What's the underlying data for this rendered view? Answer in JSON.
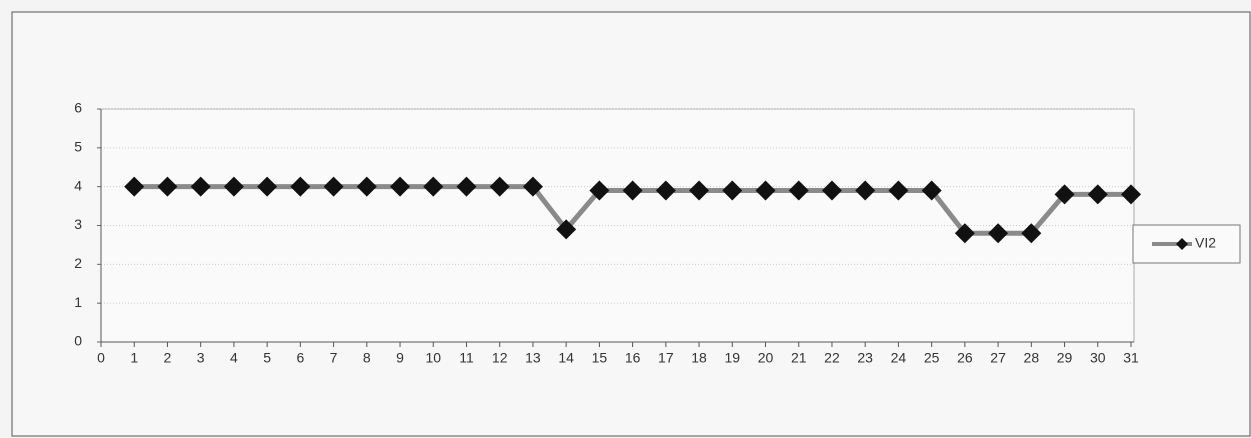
{
  "chart_data": {
    "type": "line",
    "x": [
      1,
      2,
      3,
      4,
      5,
      6,
      7,
      8,
      9,
      10,
      11,
      12,
      13,
      14,
      15,
      16,
      17,
      18,
      19,
      20,
      21,
      22,
      23,
      24,
      25,
      26,
      27,
      28,
      29,
      30,
      31
    ],
    "series": [
      {
        "name": "VI2",
        "color": "#8a8a8a",
        "marker_color": "#111111",
        "values": [
          4,
          4,
          4,
          4,
          4,
          4,
          4,
          4,
          4,
          4,
          4,
          4,
          4,
          2.9,
          3.9,
          3.9,
          3.9,
          3.9,
          3.9,
          3.9,
          3.9,
          3.9,
          3.9,
          3.9,
          3.9,
          2.8,
          2.8,
          2.8,
          3.8,
          3.8,
          3.8
        ]
      }
    ],
    "xlim": [
      0,
      31
    ],
    "xticks": [
      0,
      1,
      2,
      3,
      4,
      5,
      6,
      7,
      8,
      9,
      10,
      11,
      12,
      13,
      14,
      15,
      16,
      17,
      18,
      19,
      20,
      21,
      22,
      23,
      24,
      25,
      26,
      27,
      28,
      29,
      30,
      31
    ],
    "ylim": [
      0,
      6
    ],
    "yticks": [
      0,
      1,
      2,
      3,
      4,
      5,
      6
    ],
    "grid": true,
    "legend": "right"
  }
}
